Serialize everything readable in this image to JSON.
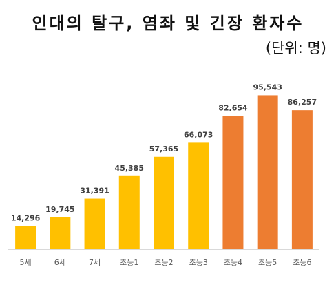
{
  "title": "인대의 탈구, 염좌 및 긴장 환자수",
  "unit": "(단위: 명)",
  "colors": {
    "yellow": "#FFC000",
    "orange": "#ED7D31",
    "axis": "#D9D9D9",
    "label": "#595959",
    "value": "#404040"
  },
  "chart_data": {
    "type": "bar",
    "title": "인대의 탈구, 염좌 및 긴장 환자수",
    "unit": "(단위: 명)",
    "categories": [
      "5세",
      "6세",
      "7세",
      "초등1",
      "초등2",
      "초등3",
      "초등4",
      "초등5",
      "초등6"
    ],
    "values": [
      14296,
      19745,
      31391,
      45385,
      57365,
      66073,
      82654,
      95543,
      86257
    ],
    "value_labels": [
      "14,296",
      "19,745",
      "31,391",
      "45,385",
      "57,365",
      "66,073",
      "82,654",
      "95,543",
      "86,257"
    ],
    "bar_colors": [
      "#FFC000",
      "#FFC000",
      "#FFC000",
      "#FFC000",
      "#FFC000",
      "#FFC000",
      "#ED7D31",
      "#ED7D31",
      "#ED7D31"
    ],
    "ylim": [
      0,
      100000
    ],
    "grid": false,
    "legend": "none"
  }
}
